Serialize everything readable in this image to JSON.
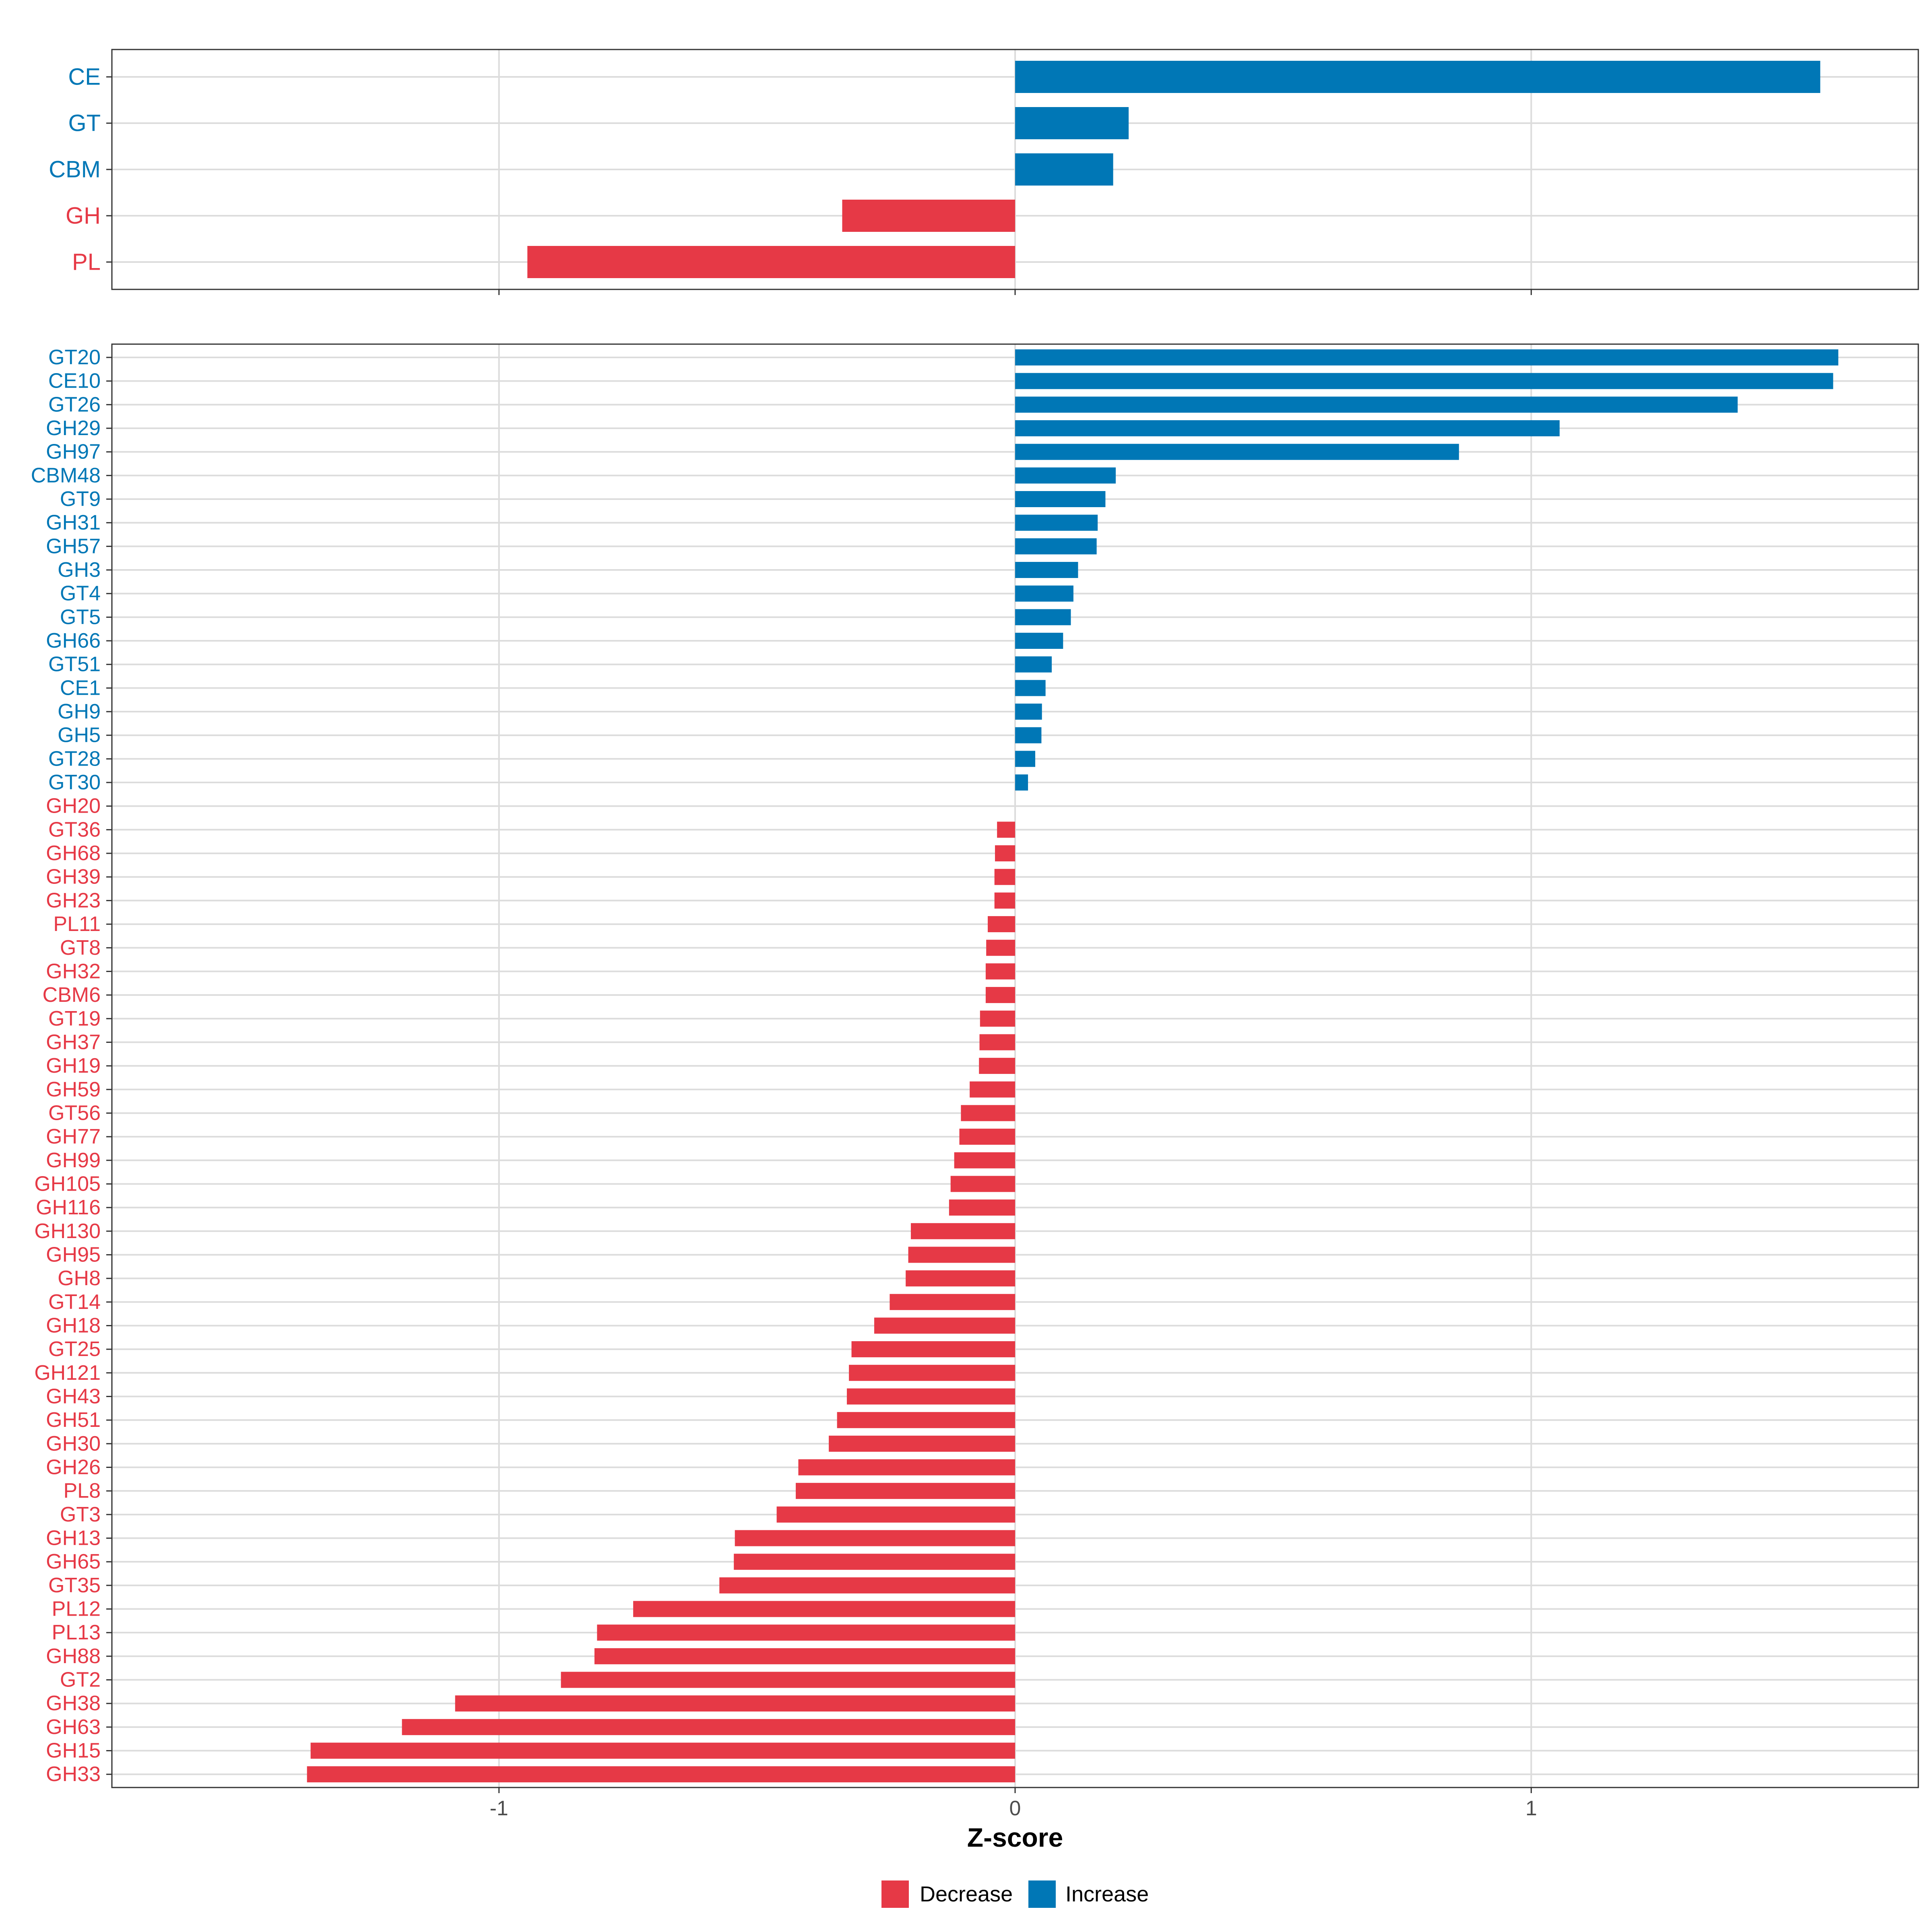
{
  "chart_data": {
    "type": "bar",
    "orientation": "horizontal",
    "xlabel": "Z-score",
    "x_range": [
      -1.75,
      1.75
    ],
    "x_ticks": [
      {
        "value": -1,
        "label": "-1"
      },
      {
        "value": 0,
        "label": "0"
      },
      {
        "value": 1,
        "label": "1"
      }
    ],
    "grid": true,
    "legend_position": "bottom",
    "colors": {
      "Decrease": "#e63946",
      "Increase": "#0077b6"
    },
    "legend": [
      {
        "key": "Decrease",
        "label": "Decrease"
      },
      {
        "key": "Increase",
        "label": "Increase"
      }
    ],
    "panels": [
      {
        "name": "family",
        "bars": [
          {
            "label": "CE",
            "value": 1.56,
            "group": "Increase"
          },
          {
            "label": "GT",
            "value": 0.22,
            "group": "Increase"
          },
          {
            "label": "CBM",
            "value": 0.19,
            "group": "Increase"
          },
          {
            "label": "GH",
            "value": -0.335,
            "group": "Decrease"
          },
          {
            "label": "PL",
            "value": -0.945,
            "group": "Decrease"
          }
        ]
      },
      {
        "name": "subfamily",
        "bars": [
          {
            "label": "GT20",
            "value": 1.595,
            "group": "Increase"
          },
          {
            "label": "CE10",
            "value": 1.585,
            "group": "Increase"
          },
          {
            "label": "GT26",
            "value": 1.4,
            "group": "Increase"
          },
          {
            "label": "GH29",
            "value": 1.055,
            "group": "Increase"
          },
          {
            "label": "GH97",
            "value": 0.86,
            "group": "Increase"
          },
          {
            "label": "CBM48",
            "value": 0.195,
            "group": "Increase"
          },
          {
            "label": "GT9",
            "value": 0.175,
            "group": "Increase"
          },
          {
            "label": "GH31",
            "value": 0.16,
            "group": "Increase"
          },
          {
            "label": "GH57",
            "value": 0.158,
            "group": "Increase"
          },
          {
            "label": "GH3",
            "value": 0.122,
            "group": "Increase"
          },
          {
            "label": "GT4",
            "value": 0.113,
            "group": "Increase"
          },
          {
            "label": "GT5",
            "value": 0.108,
            "group": "Increase"
          },
          {
            "label": "GH66",
            "value": 0.093,
            "group": "Increase"
          },
          {
            "label": "GT51",
            "value": 0.071,
            "group": "Increase"
          },
          {
            "label": "CE1",
            "value": 0.059,
            "group": "Increase"
          },
          {
            "label": "GH9",
            "value": 0.052,
            "group": "Increase"
          },
          {
            "label": "GH5",
            "value": 0.051,
            "group": "Increase"
          },
          {
            "label": "GT28",
            "value": 0.039,
            "group": "Increase"
          },
          {
            "label": "GT30",
            "value": 0.025,
            "group": "Increase"
          },
          {
            "label": "GH20",
            "value": 0,
            "group": "Decrease"
          },
          {
            "label": "GT36",
            "value": -0.035,
            "group": "Decrease"
          },
          {
            "label": "GH68",
            "value": -0.039,
            "group": "Decrease"
          },
          {
            "label": "GH39",
            "value": -0.04,
            "group": "Decrease"
          },
          {
            "label": "GH23",
            "value": -0.04,
            "group": "Decrease"
          },
          {
            "label": "PL11",
            "value": -0.053,
            "group": "Decrease"
          },
          {
            "label": "GT8",
            "value": -0.056,
            "group": "Decrease"
          },
          {
            "label": "GH32",
            "value": -0.057,
            "group": "Decrease"
          },
          {
            "label": "CBM6",
            "value": -0.057,
            "group": "Decrease"
          },
          {
            "label": "GT19",
            "value": -0.068,
            "group": "Decrease"
          },
          {
            "label": "GH37",
            "value": -0.069,
            "group": "Decrease"
          },
          {
            "label": "GH19",
            "value": -0.07,
            "group": "Decrease"
          },
          {
            "label": "GH59",
            "value": -0.088,
            "group": "Decrease"
          },
          {
            "label": "GT56",
            "value": -0.105,
            "group": "Decrease"
          },
          {
            "label": "GH77",
            "value": -0.108,
            "group": "Decrease"
          },
          {
            "label": "GH99",
            "value": -0.118,
            "group": "Decrease"
          },
          {
            "label": "GH105",
            "value": -0.125,
            "group": "Decrease"
          },
          {
            "label": "GH116",
            "value": -0.128,
            "group": "Decrease"
          },
          {
            "label": "GH130",
            "value": -0.202,
            "group": "Decrease"
          },
          {
            "label": "GH95",
            "value": -0.207,
            "group": "Decrease"
          },
          {
            "label": "GH8",
            "value": -0.212,
            "group": "Decrease"
          },
          {
            "label": "GT14",
            "value": -0.243,
            "group": "Decrease"
          },
          {
            "label": "GH18",
            "value": -0.273,
            "group": "Decrease"
          },
          {
            "label": "GT25",
            "value": -0.317,
            "group": "Decrease"
          },
          {
            "label": "GH121",
            "value": -0.322,
            "group": "Decrease"
          },
          {
            "label": "GH43",
            "value": -0.326,
            "group": "Decrease"
          },
          {
            "label": "GH51",
            "value": -0.345,
            "group": "Decrease"
          },
          {
            "label": "GH30",
            "value": -0.361,
            "group": "Decrease"
          },
          {
            "label": "GH26",
            "value": -0.42,
            "group": "Decrease"
          },
          {
            "label": "PL8",
            "value": -0.425,
            "group": "Decrease"
          },
          {
            "label": "GT3",
            "value": -0.462,
            "group": "Decrease"
          },
          {
            "label": "GH13",
            "value": -0.543,
            "group": "Decrease"
          },
          {
            "label": "GH65",
            "value": -0.545,
            "group": "Decrease"
          },
          {
            "label": "GT35",
            "value": -0.573,
            "group": "Decrease"
          },
          {
            "label": "PL12",
            "value": -0.74,
            "group": "Decrease"
          },
          {
            "label": "PL13",
            "value": -0.81,
            "group": "Decrease"
          },
          {
            "label": "GH88",
            "value": -0.815,
            "group": "Decrease"
          },
          {
            "label": "GT2",
            "value": -0.88,
            "group": "Decrease"
          },
          {
            "label": "GH38",
            "value": -1.085,
            "group": "Decrease"
          },
          {
            "label": "GH63",
            "value": -1.188,
            "group": "Decrease"
          },
          {
            "label": "GH15",
            "value": -1.365,
            "group": "Decrease"
          },
          {
            "label": "GH33",
            "value": -1.372,
            "group": "Decrease"
          }
        ]
      }
    ]
  }
}
